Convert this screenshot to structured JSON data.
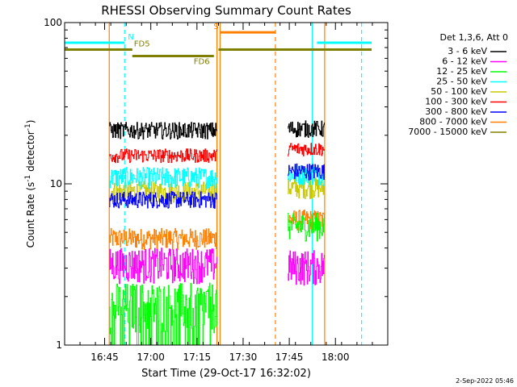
{
  "chart_data": {
    "type": "line",
    "title": "RHESSI Observing Summary Count Rates",
    "xlabel": "Start Time (29-Oct-17 16:32:02)",
    "ylabel_main": "Count Rate (s",
    "ylabel_sup1": "-1",
    "ylabel_mid": " detector",
    "ylabel_sup2": "-1",
    "ylabel_end": ")",
    "yscale": "log",
    "xlim_minutes": [
      0,
      105
    ],
    "ylim": [
      1,
      100
    ],
    "x_ticks": [
      {
        "minute": 13,
        "label": "16:45"
      },
      {
        "minute": 28,
        "label": "17:00"
      },
      {
        "minute": 43,
        "label": "17:15"
      },
      {
        "minute": 58,
        "label": "17:30"
      },
      {
        "minute": 73,
        "label": "17:45"
      },
      {
        "minute": 88,
        "label": "18:00"
      }
    ],
    "y_ticks": [
      {
        "value": 1,
        "label": "1"
      },
      {
        "value": 10,
        "label": "10"
      },
      {
        "value": 100,
        "label": "100"
      }
    ],
    "legend_title": "Det 1,3,6, Att 0",
    "legend_position": "right",
    "series": [
      {
        "name": "3 - 6 keV",
        "color": "#000000",
        "values": [
          {
            "segment": 1,
            "start": 14.5,
            "end": 49.5,
            "level": 21.5,
            "jitter": 0.12
          },
          {
            "segment": 2,
            "start": 72.5,
            "end": 84.5,
            "level": 22.0,
            "jitter": 0.12
          }
        ]
      },
      {
        "name": "6 - 12 keV",
        "color": "#ff00ff",
        "values": [
          {
            "segment": 1,
            "start": 14.5,
            "end": 49.5,
            "level": 3.2,
            "jitter": 0.25
          },
          {
            "segment": 2,
            "start": 72.5,
            "end": 84.5,
            "level": 3.1,
            "jitter": 0.25
          }
        ]
      },
      {
        "name": "12 - 25 keV",
        "color": "#00ff00",
        "values": [
          {
            "segment": 1,
            "start": 14.5,
            "end": 49.5,
            "level": 1.8,
            "jitter": 0.35
          },
          {
            "segment": 2,
            "start": 72.5,
            "end": 84.5,
            "level": 5.5,
            "jitter": 0.2
          }
        ]
      },
      {
        "name": "25 - 50 keV",
        "color": "#00ffff",
        "values": [
          {
            "segment": 1,
            "start": 14.5,
            "end": 49.5,
            "level": 11.0,
            "jitter": 0.15
          },
          {
            "segment": 2,
            "start": 72.5,
            "end": 84.5,
            "level": 11.5,
            "jitter": 0.15
          }
        ]
      },
      {
        "name": "50 - 100 keV",
        "color": "#c8c800",
        "values": [
          {
            "segment": 1,
            "start": 14.5,
            "end": 49.5,
            "level": 9.0,
            "jitter": 0.15
          },
          {
            "segment": 2,
            "start": 72.5,
            "end": 84.5,
            "level": 9.5,
            "jitter": 0.15
          }
        ]
      },
      {
        "name": "100 - 300 keV",
        "color": "#ff0000",
        "values": [
          {
            "segment": 1,
            "start": 14.5,
            "end": 49.5,
            "level": 15.0,
            "jitter": 0.1
          },
          {
            "segment": 2,
            "start": 72.5,
            "end": 84.5,
            "level": 16.5,
            "jitter": 0.1
          }
        ]
      },
      {
        "name": "300 - 800 keV",
        "color": "#0000ff",
        "values": [
          {
            "segment": 1,
            "start": 14.5,
            "end": 49.5,
            "level": 8.0,
            "jitter": 0.12
          },
          {
            "segment": 2,
            "start": 72.5,
            "end": 84.5,
            "level": 12.0,
            "jitter": 0.12
          }
        ]
      },
      {
        "name": "800 - 7000 keV",
        "color": "#ff8000",
        "values": [
          {
            "segment": 1,
            "start": 14.5,
            "end": 49.5,
            "level": 4.6,
            "jitter": 0.15
          },
          {
            "segment": 2,
            "start": 72.5,
            "end": 84.5,
            "level": 6.0,
            "jitter": 0.15
          }
        ]
      },
      {
        "name": "7000 - 15000 keV",
        "color": "#808000",
        "values": []
      }
    ],
    "flags": [
      {
        "label": "N",
        "color": "#00ffff",
        "level_value": 75,
        "intervals": [
          [
            0,
            19.5
          ],
          [
            82,
            100
          ]
        ]
      },
      {
        "label": "S",
        "color": "#ff8000",
        "level_value": 87,
        "intervals": [
          [
            50.5,
            68.5
          ]
        ]
      },
      {
        "label": "FD5",
        "color": "#808000",
        "level_value": 68,
        "intervals": [
          [
            0,
            22
          ],
          [
            50,
            100
          ]
        ]
      },
      {
        "label": "FD6",
        "color": "#808000",
        "level_value": 62,
        "intervals": [
          [
            22,
            48.5
          ]
        ]
      }
    ],
    "vertical_lines": [
      {
        "minute": 14.5,
        "color": "#ff8000",
        "style": "solid"
      },
      {
        "minute": 19.5,
        "color": "#00ffff",
        "style": "dashed"
      },
      {
        "minute": 49.5,
        "color": "#ff8000",
        "style": "solid"
      },
      {
        "minute": 50.5,
        "color": "#ff8000",
        "style": "solid"
      },
      {
        "minute": 68.5,
        "color": "#ff8000",
        "style": "dashed"
      },
      {
        "minute": 80.5,
        "color": "#00ffff",
        "style": "solid"
      },
      {
        "minute": 84.5,
        "color": "#ff8000",
        "style": "solid"
      },
      {
        "minute": 96.5,
        "color": "#00ffff",
        "style": "dashed"
      }
    ]
  },
  "footer": {
    "timestamp": "2-Sep-2022 05:46"
  }
}
